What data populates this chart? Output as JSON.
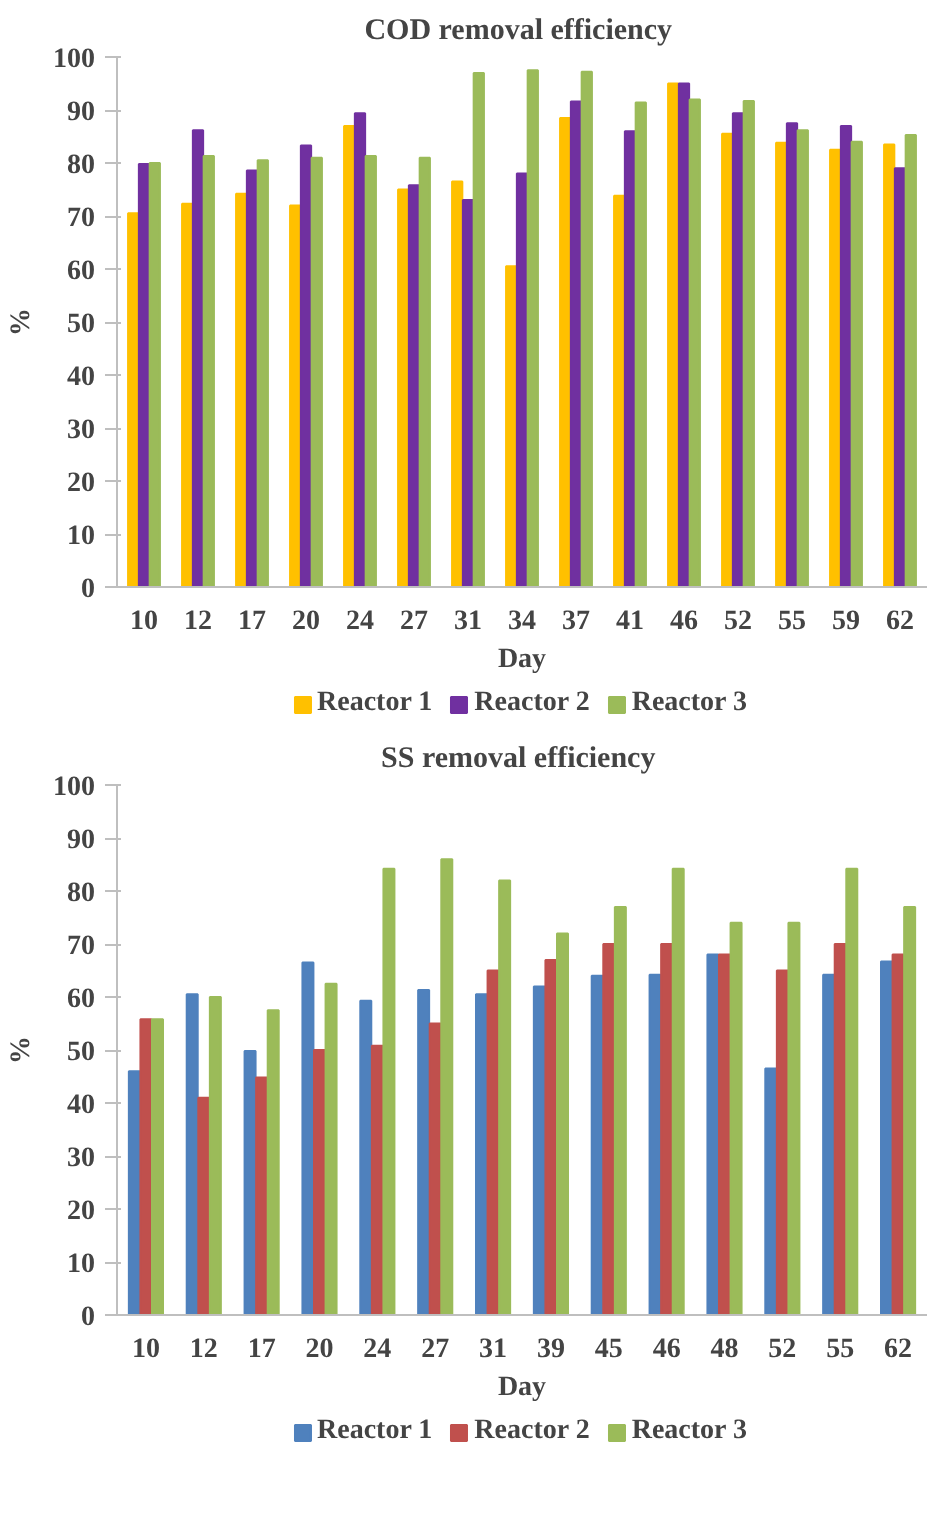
{
  "chart_data": [
    {
      "type": "bar",
      "title": "COD removal  efficiency",
      "xlabel": "Day",
      "ylabel": "%",
      "categories": [
        "10",
        "12",
        "17",
        "20",
        "24",
        "27",
        "31",
        "34",
        "37",
        "41",
        "46",
        "52",
        "55",
        "59",
        "62"
      ],
      "series": [
        {
          "name": "Reactor 1",
          "color": "#ffc000",
          "values": [
            70.5,
            72.3,
            74.2,
            72,
            87,
            75,
            76.5,
            60.5,
            88.5,
            73.8,
            95,
            85.5,
            83.8,
            82.5,
            83.5
          ]
        },
        {
          "name": "Reactor 2",
          "color": "#7030a0",
          "values": [
            79.8,
            86.2,
            78.6,
            83.3,
            89.4,
            75.8,
            73,
            78,
            91.6,
            86,
            95,
            89.4,
            87.5,
            87,
            79
          ]
        },
        {
          "name": "Reactor 3",
          "color": "#9bbb59",
          "values": [
            80,
            81.3,
            80.5,
            81,
            81.3,
            81,
            97,
            97.5,
            97.2,
            91.4,
            92,
            91.7,
            86.2,
            84,
            85.3
          ]
        }
      ],
      "ylim": [
        0,
        100
      ],
      "yticks": [
        0,
        10,
        20,
        30,
        40,
        50,
        60,
        70,
        80,
        90,
        100
      ],
      "grid": false,
      "legend": "bottom"
    },
    {
      "type": "bar",
      "title": "SS removal  efficiency",
      "xlabel": "Day",
      "ylabel": "%",
      "categories": [
        "10",
        "12",
        "17",
        "20",
        "24",
        "27",
        "31",
        "39",
        "45",
        "46",
        "48",
        "52",
        "55",
        "62"
      ],
      "series": [
        {
          "name": "Reactor 1",
          "color": "#4f81bd",
          "values": [
            46,
            60.5,
            49.8,
            66.5,
            59.3,
            61.3,
            60.5,
            62,
            64,
            64.2,
            68,
            46.5,
            64.2,
            66.7
          ]
        },
        {
          "name": "Reactor 2",
          "color": "#c0504d",
          "values": [
            55.8,
            41,
            44.8,
            50,
            50.8,
            55,
            65,
            67,
            70,
            70,
            68,
            65,
            70,
            68
          ]
        },
        {
          "name": "Reactor 3",
          "color": "#9bbb59",
          "values": [
            55.8,
            60,
            57.5,
            62.5,
            84.2,
            86,
            82,
            72,
            77,
            84.2,
            74,
            74,
            84.2,
            77
          ]
        }
      ],
      "ylim": [
        0,
        100
      ],
      "yticks": [
        0,
        10,
        20,
        30,
        40,
        50,
        60,
        70,
        80,
        90,
        100
      ],
      "grid": false,
      "legend": "bottom"
    }
  ]
}
